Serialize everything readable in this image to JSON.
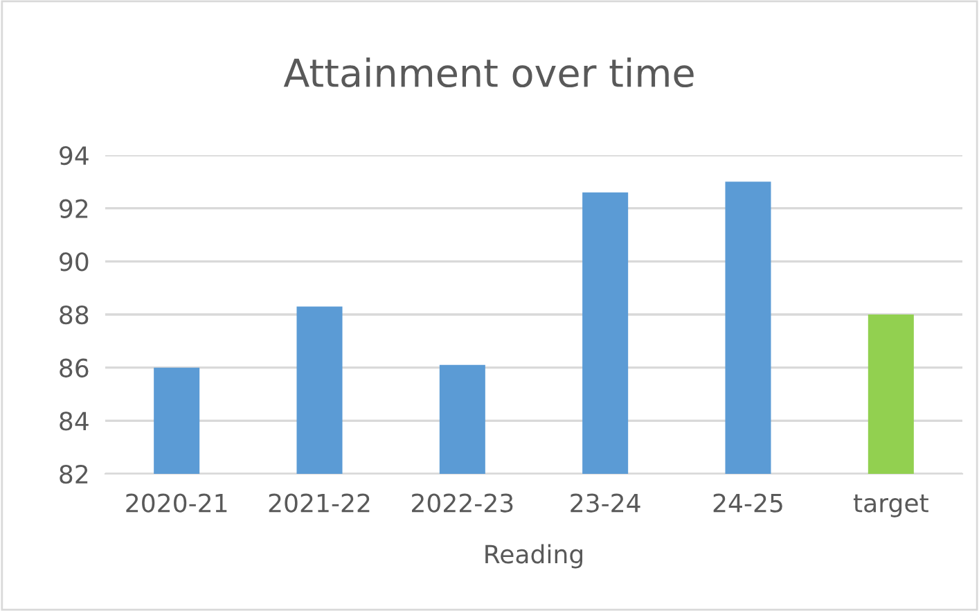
{
  "chart_data": {
    "type": "bar",
    "title": "Attainment over time",
    "xlabel": "Reading",
    "categories": [
      "2020-21",
      "2021-22",
      "2022-23",
      "23-24",
      "24-25",
      "target"
    ],
    "values": [
      86.0,
      88.3,
      86.1,
      92.6,
      93.0,
      88.0
    ],
    "colors": [
      "#5b9bd5",
      "#5b9bd5",
      "#5b9bd5",
      "#5b9bd5",
      "#5b9bd5",
      "#92d050"
    ],
    "ylim": [
      82,
      94
    ],
    "yticks": [
      82,
      84,
      86,
      88,
      90,
      92,
      94
    ],
    "grid": "y",
    "legend": false
  }
}
